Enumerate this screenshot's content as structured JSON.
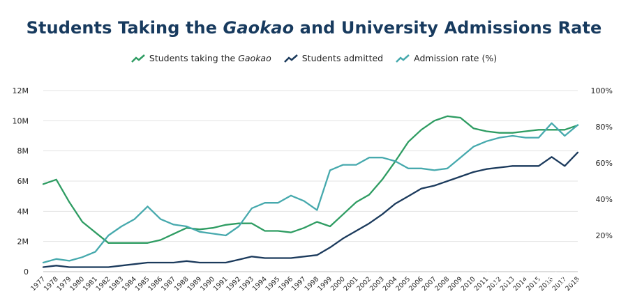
{
  "title_pre": "Students Taking the ",
  "title_em": "Gaokao",
  "title_post": " and University Admissions Rate",
  "watermark": "知乎 @小希留学",
  "colors": {
    "green": "#2e9c62",
    "navy": "#1b3a5c",
    "teal": "#46a9ad",
    "grid": "#e3e3e3"
  },
  "chart_data": {
    "type": "line",
    "x": [
      "1977",
      "1978",
      "1979",
      "1980",
      "1981",
      "1982",
      "1983",
      "1984",
      "1985",
      "1986",
      "1987",
      "1988",
      "1989",
      "1990",
      "1991",
      "1992",
      "1993",
      "1994",
      "1995",
      "1996",
      "1997",
      "1998",
      "1999",
      "2000",
      "2001",
      "2002",
      "2003",
      "2004",
      "2005",
      "2006",
      "2007",
      "2008",
      "2009",
      "2010",
      "2011",
      "2012",
      "2013",
      "2014",
      "2015",
      "2016",
      "2017",
      "2018"
    ],
    "y_left": {
      "ticks": [
        0,
        2,
        4,
        6,
        8,
        10,
        12
      ],
      "tick_labels": [
        "0",
        "2M",
        "4M",
        "6M",
        "8M",
        "10M",
        "12M"
      ],
      "lim": [
        0,
        12
      ],
      "unit": "M"
    },
    "y_right": {
      "ticks": [
        20,
        40,
        60,
        80,
        100
      ],
      "tick_labels": [
        "20%",
        "40%",
        "60%",
        "80%",
        "100%"
      ],
      "lim": [
        0,
        100
      ]
    },
    "grid": true,
    "legend_position": "top-center",
    "series": [
      {
        "name_pre": "Students taking the ",
        "name_em": "Gaokao",
        "name_post": "",
        "axis": "left",
        "color": "#2e9c62",
        "values": [
          5.8,
          6.1,
          4.6,
          3.3,
          2.6,
          1.9,
          1.9,
          1.9,
          1.9,
          2.1,
          2.5,
          2.9,
          2.8,
          2.9,
          3.1,
          3.2,
          3.2,
          2.7,
          2.7,
          2.6,
          2.9,
          3.3,
          3.0,
          3.8,
          4.6,
          5.1,
          6.1,
          7.3,
          8.6,
          9.4,
          10.0,
          10.3,
          10.2,
          9.5,
          9.3,
          9.2,
          9.2,
          9.3,
          9.4,
          9.4,
          9.4,
          9.7
        ]
      },
      {
        "name_pre": "Students admitted",
        "name_em": "",
        "name_post": "",
        "axis": "left",
        "color": "#1b3a5c",
        "values": [
          0.3,
          0.4,
          0.3,
          0.3,
          0.3,
          0.3,
          0.4,
          0.5,
          0.6,
          0.6,
          0.6,
          0.7,
          0.6,
          0.6,
          0.6,
          0.8,
          1.0,
          0.9,
          0.9,
          0.9,
          1.0,
          1.1,
          1.6,
          2.2,
          2.7,
          3.2,
          3.8,
          4.5,
          5.0,
          5.5,
          5.7,
          6.0,
          6.3,
          6.6,
          6.8,
          6.9,
          7.0,
          7.0,
          7.0,
          7.6,
          7.0,
          7.9
        ]
      },
      {
        "name_pre": "Admission rate (%)",
        "name_em": "",
        "name_post": "",
        "axis": "right",
        "color": "#46a9ad",
        "values": [
          5,
          7,
          6,
          8,
          11,
          20,
          25,
          29,
          36,
          29,
          26,
          25,
          22,
          21,
          20,
          25,
          35,
          38,
          38,
          42,
          39,
          34,
          56,
          59,
          59,
          63,
          63,
          61,
          57,
          57,
          56,
          57,
          63,
          69,
          72,
          74,
          75,
          74,
          74,
          82,
          75,
          81
        ]
      }
    ]
  }
}
